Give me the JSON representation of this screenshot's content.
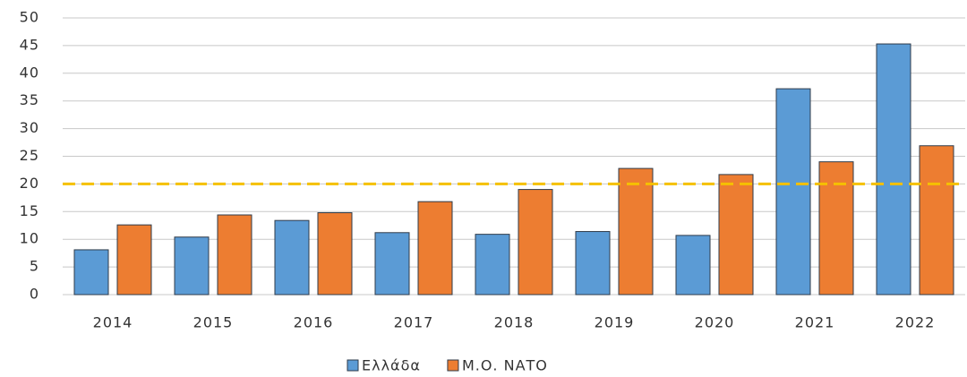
{
  "chart_data": {
    "type": "bar",
    "categories": [
      "2014",
      "2015",
      "2016",
      "2017",
      "2018",
      "2019",
      "2020",
      "2021",
      "2022"
    ],
    "series": [
      {
        "name": "Ελλάδα",
        "color": "#5b9bd5",
        "values": [
          8.1,
          10.4,
          13.4,
          11.2,
          10.9,
          11.4,
          10.7,
          37.2,
          45.3
        ]
      },
      {
        "name": "Μ.Ο. ΝΑΤΟ",
        "color": "#ed7d31",
        "values": [
          12.6,
          14.4,
          14.8,
          16.8,
          19.0,
          22.8,
          21.7,
          24.0,
          26.9
        ]
      }
    ],
    "ylim": [
      0,
      50
    ],
    "yticks": [
      0,
      5,
      10,
      15,
      20,
      25,
      30,
      35,
      40,
      45,
      50
    ],
    "grid": true,
    "reference_line": {
      "value": 20,
      "color": "#f5c000"
    },
    "legend": "bottom"
  }
}
